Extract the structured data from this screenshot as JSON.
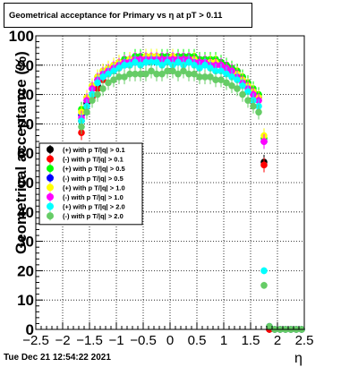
{
  "title": "Geometrical acceptance for Primary vs   η at pT > 0.11",
  "timestamp": "Tue Dec 21 12:54:22 2021",
  "chart_data": {
    "type": "scatter",
    "xlabel": "η",
    "ylabel": "Geometrical acceptance (%)",
    "xlim": [
      -2.5,
      2.5
    ],
    "ylim": [
      0,
      100
    ],
    "grid": true,
    "legend_position": "middle-left",
    "x_ticks": [
      "−2.5",
      "−2",
      "−1.5",
      "−1",
      "−0.5",
      "0",
      "0.5",
      "1",
      "1.5",
      "2",
      "2.5"
    ],
    "y_ticks": [
      "0",
      "10",
      "20",
      "30",
      "40",
      "50",
      "60",
      "70",
      "80",
      "90",
      "100"
    ],
    "x": [
      -1.65,
      -1.55,
      -1.45,
      -1.35,
      -1.25,
      -1.15,
      -1.05,
      -0.95,
      -0.85,
      -0.75,
      -0.65,
      -0.55,
      -0.45,
      -0.35,
      -0.25,
      -0.15,
      -0.05,
      0.05,
      0.15,
      0.25,
      0.35,
      0.45,
      0.55,
      0.65,
      0.75,
      0.85,
      0.95,
      1.05,
      1.15,
      1.25,
      1.35,
      1.45,
      1.55,
      1.65,
      1.75,
      1.85,
      1.95,
      2.05,
      2.15,
      2.25,
      2.35,
      2.45
    ],
    "series": [
      {
        "name": "(+) with p T/|q| > 0.1",
        "color": "#000000",
        "values": [
          71,
          77,
          80,
          83,
          86,
          88,
          89,
          90,
          90,
          91,
          91,
          92,
          92,
          92,
          92,
          92,
          92,
          92,
          92,
          92,
          92,
          92,
          91,
          91,
          91,
          91,
          91,
          90,
          89,
          88,
          86,
          84,
          81,
          79,
          57,
          0,
          0,
          0,
          0,
          0,
          0,
          0
        ]
      },
      {
        "name": "(-) with p T/|q| > 0.1",
        "color": "#ff0000",
        "values": [
          67,
          76,
          79,
          82,
          85,
          87,
          88,
          89,
          90,
          90,
          91,
          91,
          91,
          92,
          92,
          92,
          92,
          92,
          91,
          92,
          91,
          91,
          91,
          91,
          90,
          90,
          90,
          89,
          88,
          87,
          85,
          83,
          80,
          78,
          56,
          0,
          0,
          0,
          0,
          0,
          0,
          0
        ]
      },
      {
        "name": "(+) with p T/|q| > 0.5",
        "color": "#00ff00",
        "values": [
          75,
          79,
          83,
          86,
          88,
          89,
          90,
          91,
          92,
          92,
          93,
          93,
          93,
          93,
          93,
          93,
          93,
          93,
          93,
          93,
          93,
          93,
          92,
          92,
          92,
          92,
          91,
          90,
          89,
          88,
          86,
          84,
          82,
          80,
          65,
          1,
          0,
          0,
          0,
          0,
          0,
          0
        ]
      },
      {
        "name": "(-) with p T/|q| > 0.5",
        "color": "#0000ff",
        "values": [
          73,
          78,
          82,
          85,
          87,
          88,
          89,
          90,
          91,
          91,
          92,
          92,
          92,
          92,
          92,
          92,
          92,
          92,
          92,
          92,
          92,
          92,
          91,
          91,
          91,
          91,
          90,
          89,
          88,
          87,
          85,
          83,
          81,
          79,
          64,
          1,
          0,
          0,
          0,
          0,
          0,
          0
        ]
      },
      {
        "name": "(+) with p T/|q| > 1.0",
        "color": "#ffff00",
        "values": [
          74,
          79,
          83,
          86,
          88,
          89,
          90,
          91,
          91,
          92,
          92,
          92,
          93,
          93,
          93,
          92,
          92,
          93,
          92,
          92,
          92,
          92,
          91,
          91,
          91,
          91,
          90,
          89,
          88,
          87,
          85,
          83,
          81,
          79,
          66,
          1,
          0,
          0,
          0,
          0,
          0,
          0
        ]
      },
      {
        "name": "(-) with p T/|q| > 1.0",
        "color": "#ff00ff",
        "values": [
          72,
          78,
          82,
          85,
          87,
          88,
          89,
          90,
          91,
          91,
          92,
          92,
          92,
          92,
          92,
          92,
          92,
          92,
          92,
          92,
          92,
          91,
          91,
          91,
          90,
          90,
          90,
          89,
          88,
          86,
          84,
          82,
          80,
          78,
          64,
          1,
          0,
          0,
          0,
          0,
          0,
          0
        ]
      },
      {
        "name": "(+) with p T/|q| > 2.0",
        "color": "#00ffff",
        "values": [
          71,
          76,
          80,
          84,
          86,
          87,
          88,
          89,
          90,
          90,
          91,
          90,
          91,
          91,
          91,
          90,
          91,
          90,
          91,
          90,
          91,
          90,
          89,
          90,
          89,
          88,
          88,
          87,
          86,
          85,
          83,
          81,
          78,
          76,
          20,
          1,
          0,
          0,
          0,
          0,
          0,
          0
        ]
      },
      {
        "name": "(-) with p T/|q| > 2.0",
        "color": "#66cc66",
        "values": [
          69,
          74,
          78,
          80,
          82,
          84,
          85,
          86,
          86,
          87,
          87,
          87,
          87,
          88,
          87,
          87,
          88,
          88,
          87,
          88,
          87,
          87,
          86,
          86,
          86,
          85,
          85,
          84,
          83,
          82,
          80,
          78,
          76,
          74,
          15,
          1,
          0,
          0,
          0,
          0,
          0,
          0
        ]
      }
    ]
  }
}
